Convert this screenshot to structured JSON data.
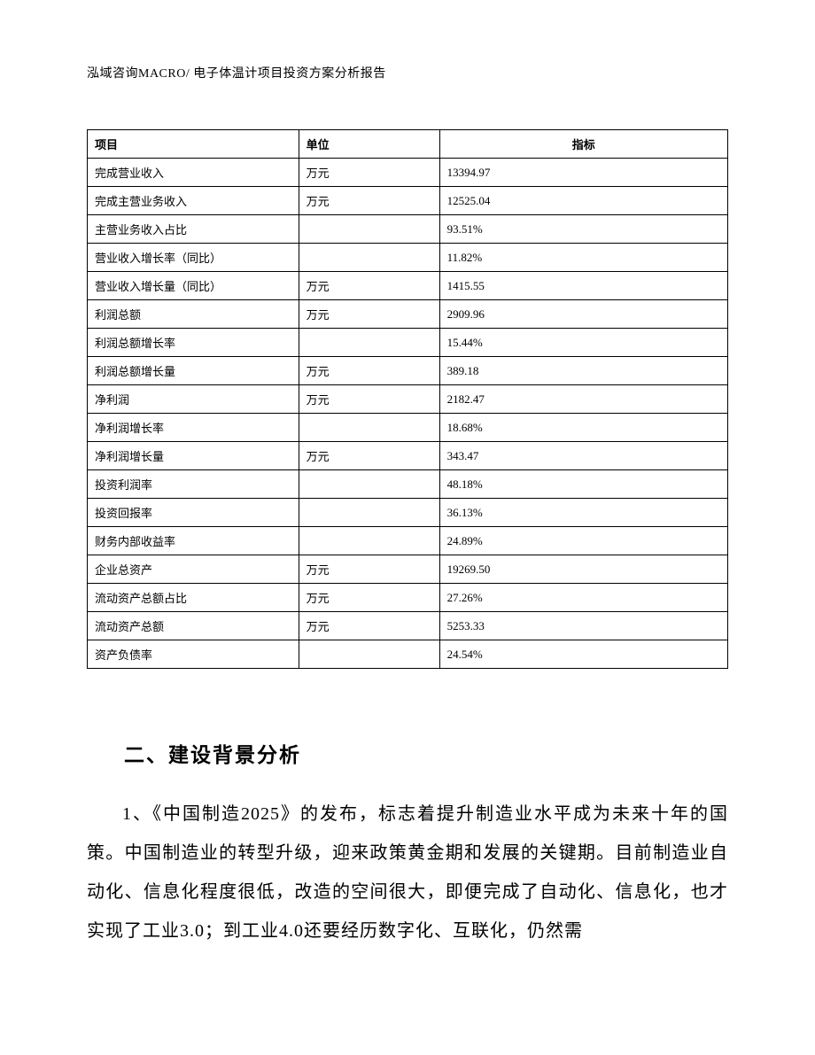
{
  "header": {
    "text": "泓域咨询MACRO/   电子体温计项目投资方案分析报告"
  },
  "table": {
    "columns": [
      {
        "label": "项目",
        "align": "left"
      },
      {
        "label": "单位",
        "align": "left"
      },
      {
        "label": "指标",
        "align": "center"
      }
    ],
    "rows": [
      {
        "item": "完成营业收入",
        "unit": "万元",
        "value": "13394.97"
      },
      {
        "item": "完成主营业务收入",
        "unit": "万元",
        "value": "12525.04"
      },
      {
        "item": "主营业务收入占比",
        "unit": "",
        "value": "93.51%"
      },
      {
        "item": "营业收入增长率（同比）",
        "unit": "",
        "value": "11.82%"
      },
      {
        "item": "营业收入增长量（同比）",
        "unit": "万元",
        "value": "1415.55"
      },
      {
        "item": "利润总额",
        "unit": "万元",
        "value": "2909.96"
      },
      {
        "item": "利润总额增长率",
        "unit": "",
        "value": "15.44%"
      },
      {
        "item": "利润总额增长量",
        "unit": "万元",
        "value": "389.18"
      },
      {
        "item": "净利润",
        "unit": "万元",
        "value": "2182.47"
      },
      {
        "item": "净利润增长率",
        "unit": "",
        "value": "18.68%"
      },
      {
        "item": "净利润增长量",
        "unit": "万元",
        "value": "343.47"
      },
      {
        "item": "投资利润率",
        "unit": "",
        "value": "48.18%"
      },
      {
        "item": "投资回报率",
        "unit": "",
        "value": "36.13%"
      },
      {
        "item": "财务内部收益率",
        "unit": "",
        "value": "24.89%"
      },
      {
        "item": "企业总资产",
        "unit": "万元",
        "value": "19269.50"
      },
      {
        "item": "流动资产总额占比",
        "unit": "万元",
        "value": "27.26%"
      },
      {
        "item": "流动资产总额",
        "unit": "万元",
        "value": "5253.33"
      },
      {
        "item": "资产负债率",
        "unit": "",
        "value": "24.54%"
      }
    ]
  },
  "section": {
    "heading": "二、建设背景分析",
    "paragraph": "1、《中国制造2025》的发布，标志着提升制造业水平成为未来十年的国策。中国制造业的转型升级，迎来政策黄金期和发展的关键期。目前制造业自动化、信息化程度很低，改造的空间很大，即便完成了自动化、信息化，也才实现了工业3.0；到工业4.0还要经历数字化、互联化，仍然需"
  },
  "style": {
    "colors": {
      "text": "#000000",
      "background": "#ffffff",
      "border": "#000000"
    },
    "fonts": {
      "body_family": "SimSun",
      "table_fontsize_pt": 10,
      "heading_fontsize_pt": 17,
      "body_fontsize_pt": 15,
      "header_fontsize_pt": 10.5
    },
    "table_col_widths_pct": [
      33,
      22,
      45
    ]
  }
}
